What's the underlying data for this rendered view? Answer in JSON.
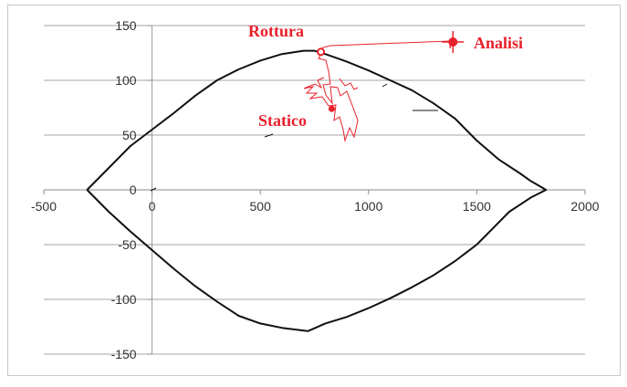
{
  "chart_data": {
    "type": "line",
    "title": "",
    "xlabel": "",
    "ylabel": "",
    "xlim": [
      -500,
      2000
    ],
    "ylim": [
      -150,
      150
    ],
    "x_ticks": [
      -500,
      0,
      500,
      1000,
      1500,
      2000
    ],
    "y_ticks": [
      -150,
      -100,
      -50,
      0,
      50,
      100,
      150
    ],
    "x_tick_labels": [
      "-500",
      "0",
      "500",
      "1000",
      "1500",
      "2000"
    ],
    "y_tick_labels": [
      "-150",
      "-100",
      "-50",
      "0",
      "50",
      "100",
      "150"
    ],
    "grid": "horizontal",
    "legend": "none",
    "series": [
      {
        "color": "#111111",
        "points": [
          [
            -300,
            0
          ],
          [
            -200,
            20
          ],
          [
            -100,
            40
          ],
          [
            0,
            55
          ],
          [
            100,
            70
          ],
          [
            200,
            86
          ],
          [
            300,
            100
          ],
          [
            400,
            110
          ],
          [
            500,
            118
          ],
          [
            600,
            124
          ],
          [
            700,
            127
          ],
          [
            750,
            127
          ],
          [
            800,
            124
          ],
          [
            900,
            117
          ],
          [
            1000,
            109
          ],
          [
            1100,
            100
          ],
          [
            1200,
            91
          ],
          [
            1300,
            79
          ],
          [
            1400,
            65
          ],
          [
            1500,
            45
          ],
          [
            1600,
            28
          ],
          [
            1700,
            15
          ],
          [
            1750,
            8
          ],
          [
            1820,
            0
          ],
          [
            1750,
            -7
          ],
          [
            1650,
            -20
          ],
          [
            1550,
            -40
          ],
          [
            1500,
            -50
          ],
          [
            1400,
            -65
          ],
          [
            1300,
            -78
          ],
          [
            1200,
            -89
          ],
          [
            1100,
            -99
          ],
          [
            1000,
            -108
          ],
          [
            900,
            -116
          ],
          [
            800,
            -122
          ],
          [
            720,
            -129
          ],
          [
            600,
            -126
          ],
          [
            500,
            -122
          ],
          [
            400,
            -115
          ],
          [
            300,
            -102
          ],
          [
            200,
            -88
          ],
          [
            100,
            -72
          ],
          [
            0,
            -55
          ],
          [
            -100,
            -38
          ],
          [
            -200,
            -20
          ],
          [
            -300,
            0
          ]
        ]
      }
    ],
    "points": [
      {
        "name": "Rottura",
        "x": 780,
        "y": 126,
        "marker": "open-circle",
        "color": "#e8202a"
      },
      {
        "name": "Analisi",
        "x": 1390,
        "y": 135,
        "marker": "filled-circle-cross",
        "color": "#e8202a"
      },
      {
        "name": "Statico",
        "x": 830,
        "y": 74,
        "marker": "filled-circle",
        "color": "#e8202a"
      }
    ]
  },
  "annotations": {
    "rottura": "Rottura",
    "analisi": "Analisi",
    "statico": "Statico"
  }
}
